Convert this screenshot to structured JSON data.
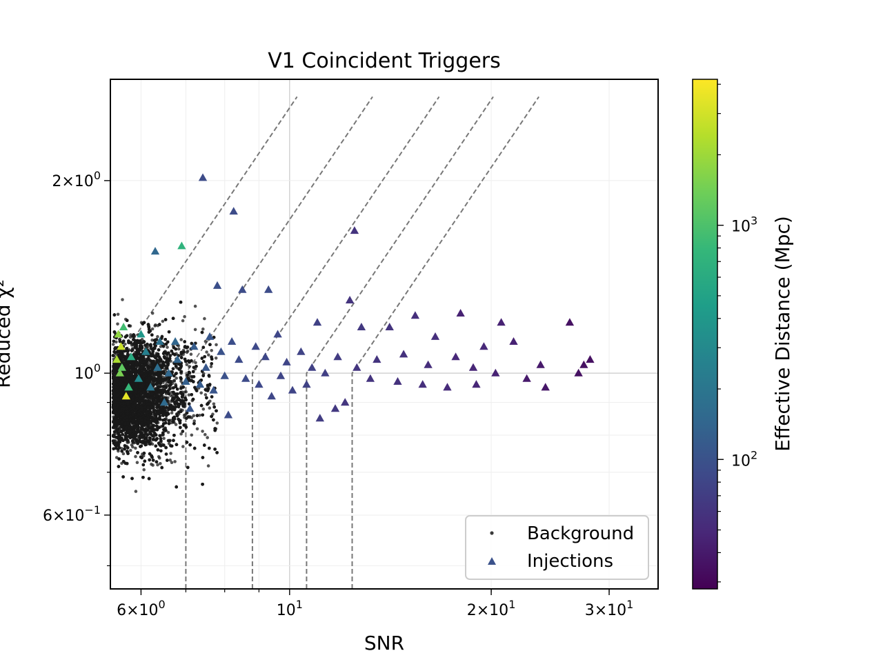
{
  "chart_data": {
    "type": "scatter",
    "title": "V1 Coincident Triggers",
    "xlabel": "SNR",
    "ylabel": "Reduced χ²",
    "xscale": "log",
    "yscale": "log",
    "xlim": [
      5.4,
      35.5
    ],
    "ylim": [
      0.46,
      2.88
    ],
    "grid": true,
    "legend": {
      "placement": "lower-right",
      "entries": [
        "Background",
        "Injections"
      ]
    },
    "x_ticks": [
      {
        "value": 6,
        "base": "6×10",
        "exp": "0"
      },
      {
        "value": 10,
        "base": "10",
        "exp": "1"
      },
      {
        "value": 20,
        "base": "2×10",
        "exp": "1"
      },
      {
        "value": 30,
        "base": "3×10",
        "exp": "1"
      }
    ],
    "y_ticks": [
      {
        "value": 0.6,
        "base": "6×10",
        "exp": "−1"
      },
      {
        "value": 1.0,
        "base": "10",
        "exp": "0"
      },
      {
        "value": 2.0,
        "base": "2×10",
        "exp": "0"
      }
    ],
    "colorbar": {
      "label": "Effective Distance (Mpc)",
      "scale": "log",
      "range": [
        28,
        4200
      ],
      "colormap": "viridis",
      "ticks": [
        {
          "value": 100,
          "base": "10",
          "exp": "2"
        },
        {
          "value": 1000,
          "base": "10",
          "exp": "3"
        }
      ]
    },
    "threshold_curves": [
      {
        "snr_cut": 5.4
      },
      {
        "snr_cut": 7.0
      },
      {
        "snr_cut": 8.8
      },
      {
        "snr_cut": 10.6
      },
      {
        "snr_cut": 12.4
      }
    ],
    "series": [
      {
        "name": "Background",
        "marker": "dot",
        "color": "#3a3a3a",
        "distribution": {
          "snr_min": 5.45,
          "snr_mode": 6.1,
          "snr_max": 7.8,
          "chi_center": 0.93,
          "chi_min": 0.6,
          "chi_max": 1.8,
          "count": 9000
        }
      },
      {
        "name": "Injections",
        "marker": "triangle",
        "points": [
          [
            7.42,
            2.02,
            90
          ],
          [
            8.25,
            1.79,
            90
          ],
          [
            12.5,
            1.67,
            60
          ],
          [
            6.3,
            1.55,
            150
          ],
          [
            6.9,
            1.58,
            700
          ],
          [
            7.8,
            1.37,
            95
          ],
          [
            8.5,
            1.35,
            90
          ],
          [
            9.3,
            1.35,
            90
          ],
          [
            12.3,
            1.3,
            60
          ],
          [
            15.4,
            1.23,
            55
          ],
          [
            18.0,
            1.24,
            45
          ],
          [
            20.7,
            1.2,
            45
          ],
          [
            26.2,
            1.2,
            35
          ],
          [
            11.0,
            1.2,
            75
          ],
          [
            12.8,
            1.18,
            65
          ],
          [
            14.1,
            1.18,
            60
          ],
          [
            16.5,
            1.14,
            55
          ],
          [
            19.5,
            1.1,
            50
          ],
          [
            21.6,
            1.12,
            45
          ],
          [
            23.7,
            1.03,
            40
          ],
          [
            27.5,
            1.03,
            35
          ],
          [
            28.1,
            1.05,
            35
          ],
          [
            27.0,
            1.0,
            35
          ],
          [
            24.1,
            0.95,
            38
          ],
          [
            22.6,
            0.98,
            40
          ],
          [
            20.3,
            1.0,
            45
          ],
          [
            19.0,
            0.96,
            48
          ],
          [
            17.2,
            0.95,
            52
          ],
          [
            15.8,
            0.96,
            55
          ],
          [
            14.5,
            0.97,
            58
          ],
          [
            13.2,
            0.98,
            60
          ],
          [
            12.1,
            0.9,
            62
          ],
          [
            11.7,
            0.88,
            65
          ],
          [
            11.1,
            0.85,
            70
          ],
          [
            8.1,
            0.86,
            90
          ],
          [
            7.1,
            0.88,
            110
          ],
          [
            9.9,
            1.04,
            80
          ],
          [
            10.4,
            1.08,
            78
          ],
          [
            9.6,
            1.15,
            82
          ],
          [
            8.9,
            1.1,
            85
          ],
          [
            8.4,
            1.05,
            88
          ],
          [
            9.0,
            0.96,
            84
          ],
          [
            9.7,
            0.99,
            80
          ],
          [
            10.8,
            1.02,
            74
          ],
          [
            11.8,
            1.06,
            68
          ],
          [
            13.5,
            1.05,
            60
          ],
          [
            14.8,
            1.07,
            57
          ],
          [
            16.1,
            1.03,
            54
          ],
          [
            17.7,
            1.06,
            50
          ],
          [
            18.8,
            1.02,
            48
          ],
          [
            5.55,
            1.15,
            1800
          ],
          [
            5.6,
            1.1,
            2800
          ],
          [
            5.52,
            1.05,
            2200
          ],
          [
            5.7,
            0.92,
            3500
          ],
          [
            5.58,
            1.0,
            1500
          ],
          [
            5.65,
            1.18,
            900
          ],
          [
            5.8,
            1.06,
            600
          ],
          [
            5.95,
            0.98,
            300
          ],
          [
            6.1,
            1.08,
            250
          ],
          [
            6.2,
            0.95,
            200
          ],
          [
            6.4,
            1.12,
            180
          ],
          [
            6.6,
            1.0,
            150
          ],
          [
            6.8,
            1.05,
            140
          ],
          [
            7.0,
            0.97,
            130
          ],
          [
            7.2,
            1.1,
            120
          ],
          [
            7.5,
            1.02,
            110
          ],
          [
            7.7,
            0.94,
            105
          ],
          [
            7.9,
            1.08,
            100
          ],
          [
            6.5,
            0.9,
            160
          ],
          [
            6.0,
            1.15,
            400
          ],
          [
            5.75,
            0.95,
            800
          ],
          [
            5.62,
            1.02,
            1200
          ],
          [
            6.35,
            1.02,
            170
          ],
          [
            6.75,
            1.12,
            145
          ],
          [
            7.35,
            0.96,
            118
          ],
          [
            7.6,
            1.14,
            108
          ],
          [
            8.0,
            0.99,
            98
          ],
          [
            8.2,
            1.12,
            94
          ],
          [
            8.6,
            0.98,
            88
          ],
          [
            9.2,
            1.06,
            83
          ],
          [
            9.4,
            0.92,
            82
          ],
          [
            10.1,
            0.94,
            79
          ],
          [
            10.6,
            0.96,
            76
          ],
          [
            11.3,
            1.0,
            72
          ],
          [
            12.6,
            1.02,
            61
          ]
        ]
      }
    ]
  }
}
